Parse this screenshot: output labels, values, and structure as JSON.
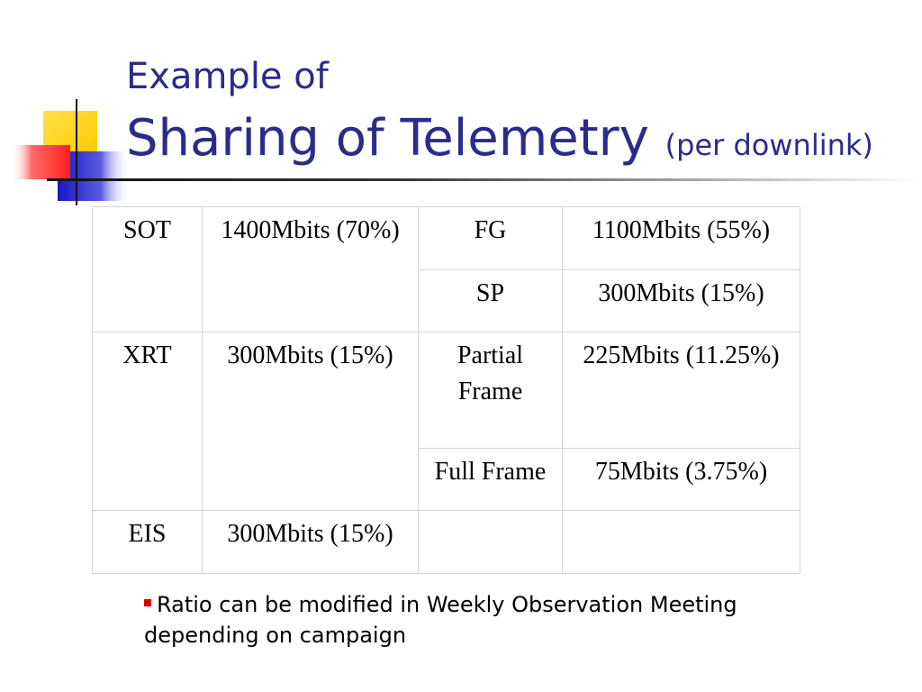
{
  "title": {
    "line1": "Example of",
    "line2_main": "Sharing of Telemetry",
    "line2_sub": "(per downlink)"
  },
  "table": {
    "sot": {
      "instrument": "SOT",
      "allocation": "1400Mbits (70%)"
    },
    "sot_fg": {
      "name": "FG",
      "allocation": "1100Mbits (55%)"
    },
    "sot_sp": {
      "name": "SP",
      "allocation": "300Mbits (15%)"
    },
    "xrt": {
      "instrument": "XRT",
      "allocation": "300Mbits (15%)"
    },
    "xrt_partial": {
      "name": "Partial Frame",
      "allocation": "225Mbits (11.25%)"
    },
    "xrt_full": {
      "name": "Full Frame",
      "allocation": "75Mbits (3.75%)"
    },
    "eis": {
      "instrument": "EIS",
      "allocation": "300Mbits (15%)"
    }
  },
  "bullet_text": "Ratio can be modified in Weekly Observation Meeting depending on campaign",
  "colors": {
    "title": "#2b2b8c",
    "bullet": "#e00000",
    "deco_yellow": "#ffd200",
    "deco_blue": "#2020c8",
    "deco_red": "#ff4040"
  }
}
